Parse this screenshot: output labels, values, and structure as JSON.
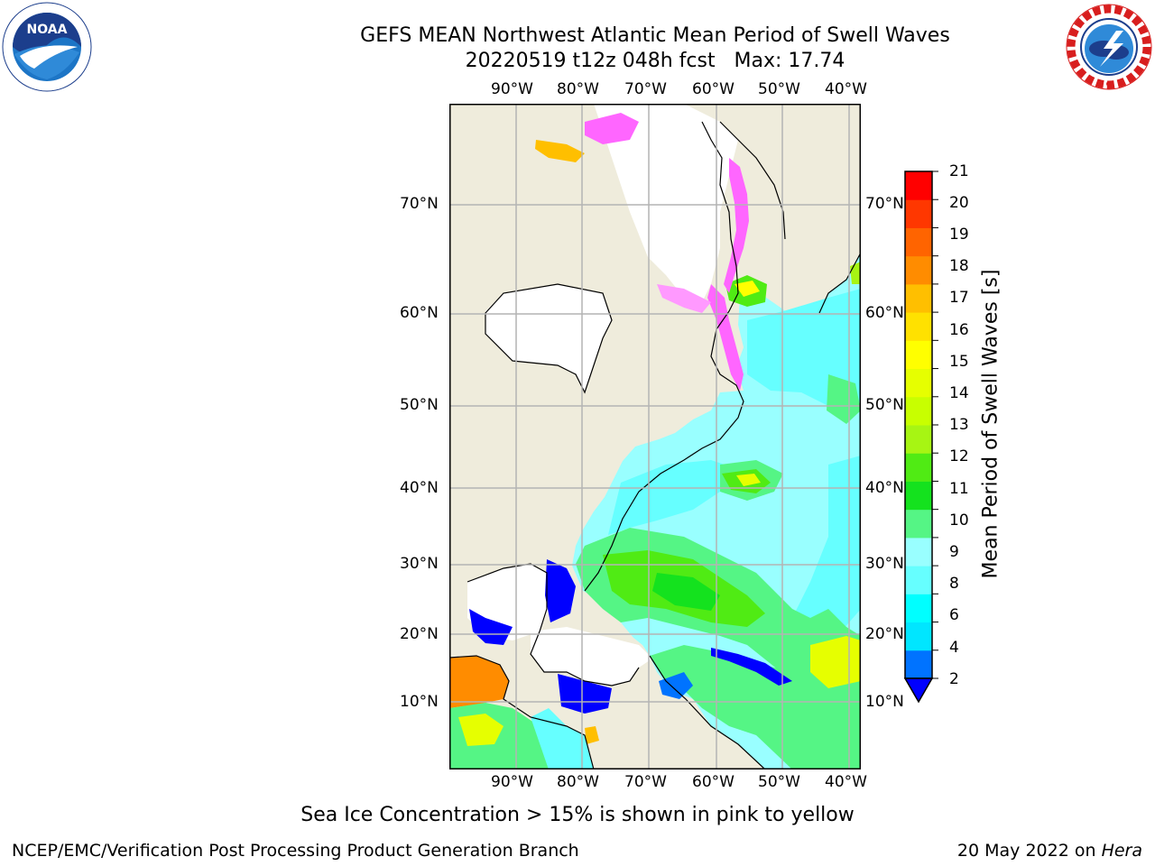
{
  "title": {
    "line1": "GEFS MEAN Northwest Atlantic Mean Period of Swell Waves",
    "line2": "20220519 t12z 048h fcst   Max: 17.74"
  },
  "logos": {
    "left": {
      "icon": "noaa-logo",
      "text": "NOAA",
      "ring_text": "NATIONAL OCEANIC AND ATMOSPHERIC ADMINISTRATION · U.S. DEPARTMENT OF COMMERCE"
    },
    "right": {
      "icon": "nws-logo",
      "ring_text": "NATIONAL WEATHER SERVICE"
    }
  },
  "map": {
    "lon_labels_top": [
      "90°W",
      "80°W",
      "70°W",
      "60°W",
      "50°W",
      "40°W"
    ],
    "lon_labels_bottom": [
      "90°W",
      "80°W",
      "70°W",
      "60°W",
      "50°W",
      "40°W"
    ],
    "lat_labels_left": [
      "70°N",
      "60°N",
      "50°N",
      "40°N",
      "30°N",
      "20°N",
      "10°N"
    ],
    "lat_labels_right": [
      "70°N",
      "60°N",
      "50°N",
      "40°N",
      "30°N",
      "20°N",
      "10°N"
    ],
    "land_color": "#efecdc",
    "ocean_no_data_color": "#ffffff",
    "grid_color": "#b4b4b4"
  },
  "colorbar": {
    "label": "Mean Period of Swell Waves [s]",
    "ticks": [
      "21",
      "20",
      "19",
      "18",
      "17",
      "16",
      "15",
      "14",
      "13",
      "12",
      "11",
      "10",
      "9",
      "8",
      "6",
      "4",
      "2"
    ],
    "colors_low_to_high": [
      "#0073ff",
      "#00e6ff",
      "#00ffff",
      "#66ffff",
      "#99ffff",
      "#55f585",
      "#14e21e",
      "#50eb14",
      "#a7f513",
      "#c8ff00",
      "#e6ff00",
      "#ffff00",
      "#ffe100",
      "#ffbf00",
      "#ff8c00",
      "#ff6400",
      "#ff3700",
      "#ff0000"
    ],
    "under_color": "#0000ff"
  },
  "note": "Sea Ice Concentration > 15% is shown in pink to yellow",
  "footer": {
    "left": "NCEP/EMC/Verification Post Processing Product Generation Branch",
    "right_prefix": "20 May 2022 on ",
    "right_machine": "Hera"
  }
}
